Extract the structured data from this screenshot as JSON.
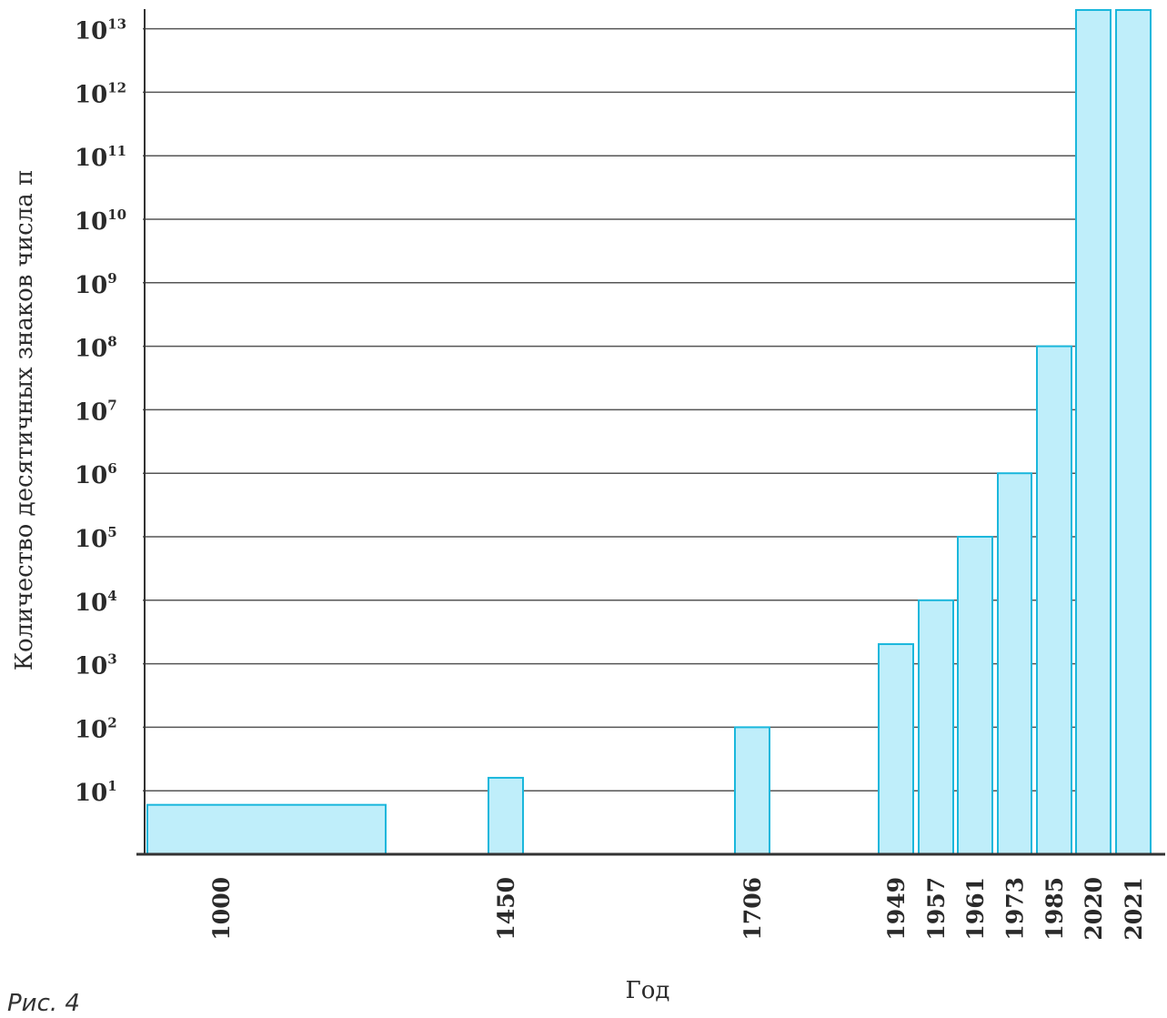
{
  "chart_data": {
    "type": "bar",
    "ylabel": "Количество десятичных знаков числа π",
    "xlabel": "Год",
    "yscale": "log",
    "ylim": [
      1,
      16000000000000
    ],
    "grid": true,
    "categories": [
      "1000",
      "1450",
      "1706",
      "1949",
      "1957",
      "1961",
      "1973",
      "1985",
      "2020",
      "2021"
    ],
    "values": [
      6,
      16,
      100,
      2037,
      10000,
      100000,
      1000000,
      100000000,
      50000000000000,
      62800000000000
    ],
    "y_ticks": [
      {
        "base": "10",
        "exp": "1",
        "value": 10
      },
      {
        "base": "10",
        "exp": "2",
        "value": 100
      },
      {
        "base": "10",
        "exp": "3",
        "value": 1000
      },
      {
        "base": "10",
        "exp": "4",
        "value": 10000
      },
      {
        "base": "10",
        "exp": "5",
        "value": 100000
      },
      {
        "base": "10",
        "exp": "6",
        "value": 1000000
      },
      {
        "base": "10",
        "exp": "7",
        "value": 10000000
      },
      {
        "base": "10",
        "exp": "8",
        "value": 100000000
      },
      {
        "base": "10",
        "exp": "9",
        "value": 1000000000
      },
      {
        "base": "10",
        "exp": "10",
        "value": 10000000000
      },
      {
        "base": "10",
        "exp": "11",
        "value": 100000000000
      },
      {
        "base": "10",
        "exp": "12",
        "value": 1000000000000
      },
      {
        "base": "10",
        "exp": "13",
        "value": 10000000000000
      }
    ],
    "colors": {
      "bar_fill": "#bfeefa",
      "bar_stroke": "#1ab7dc",
      "grid": "#555555",
      "axis": "#333333"
    }
  },
  "caption": "Рис.  4"
}
